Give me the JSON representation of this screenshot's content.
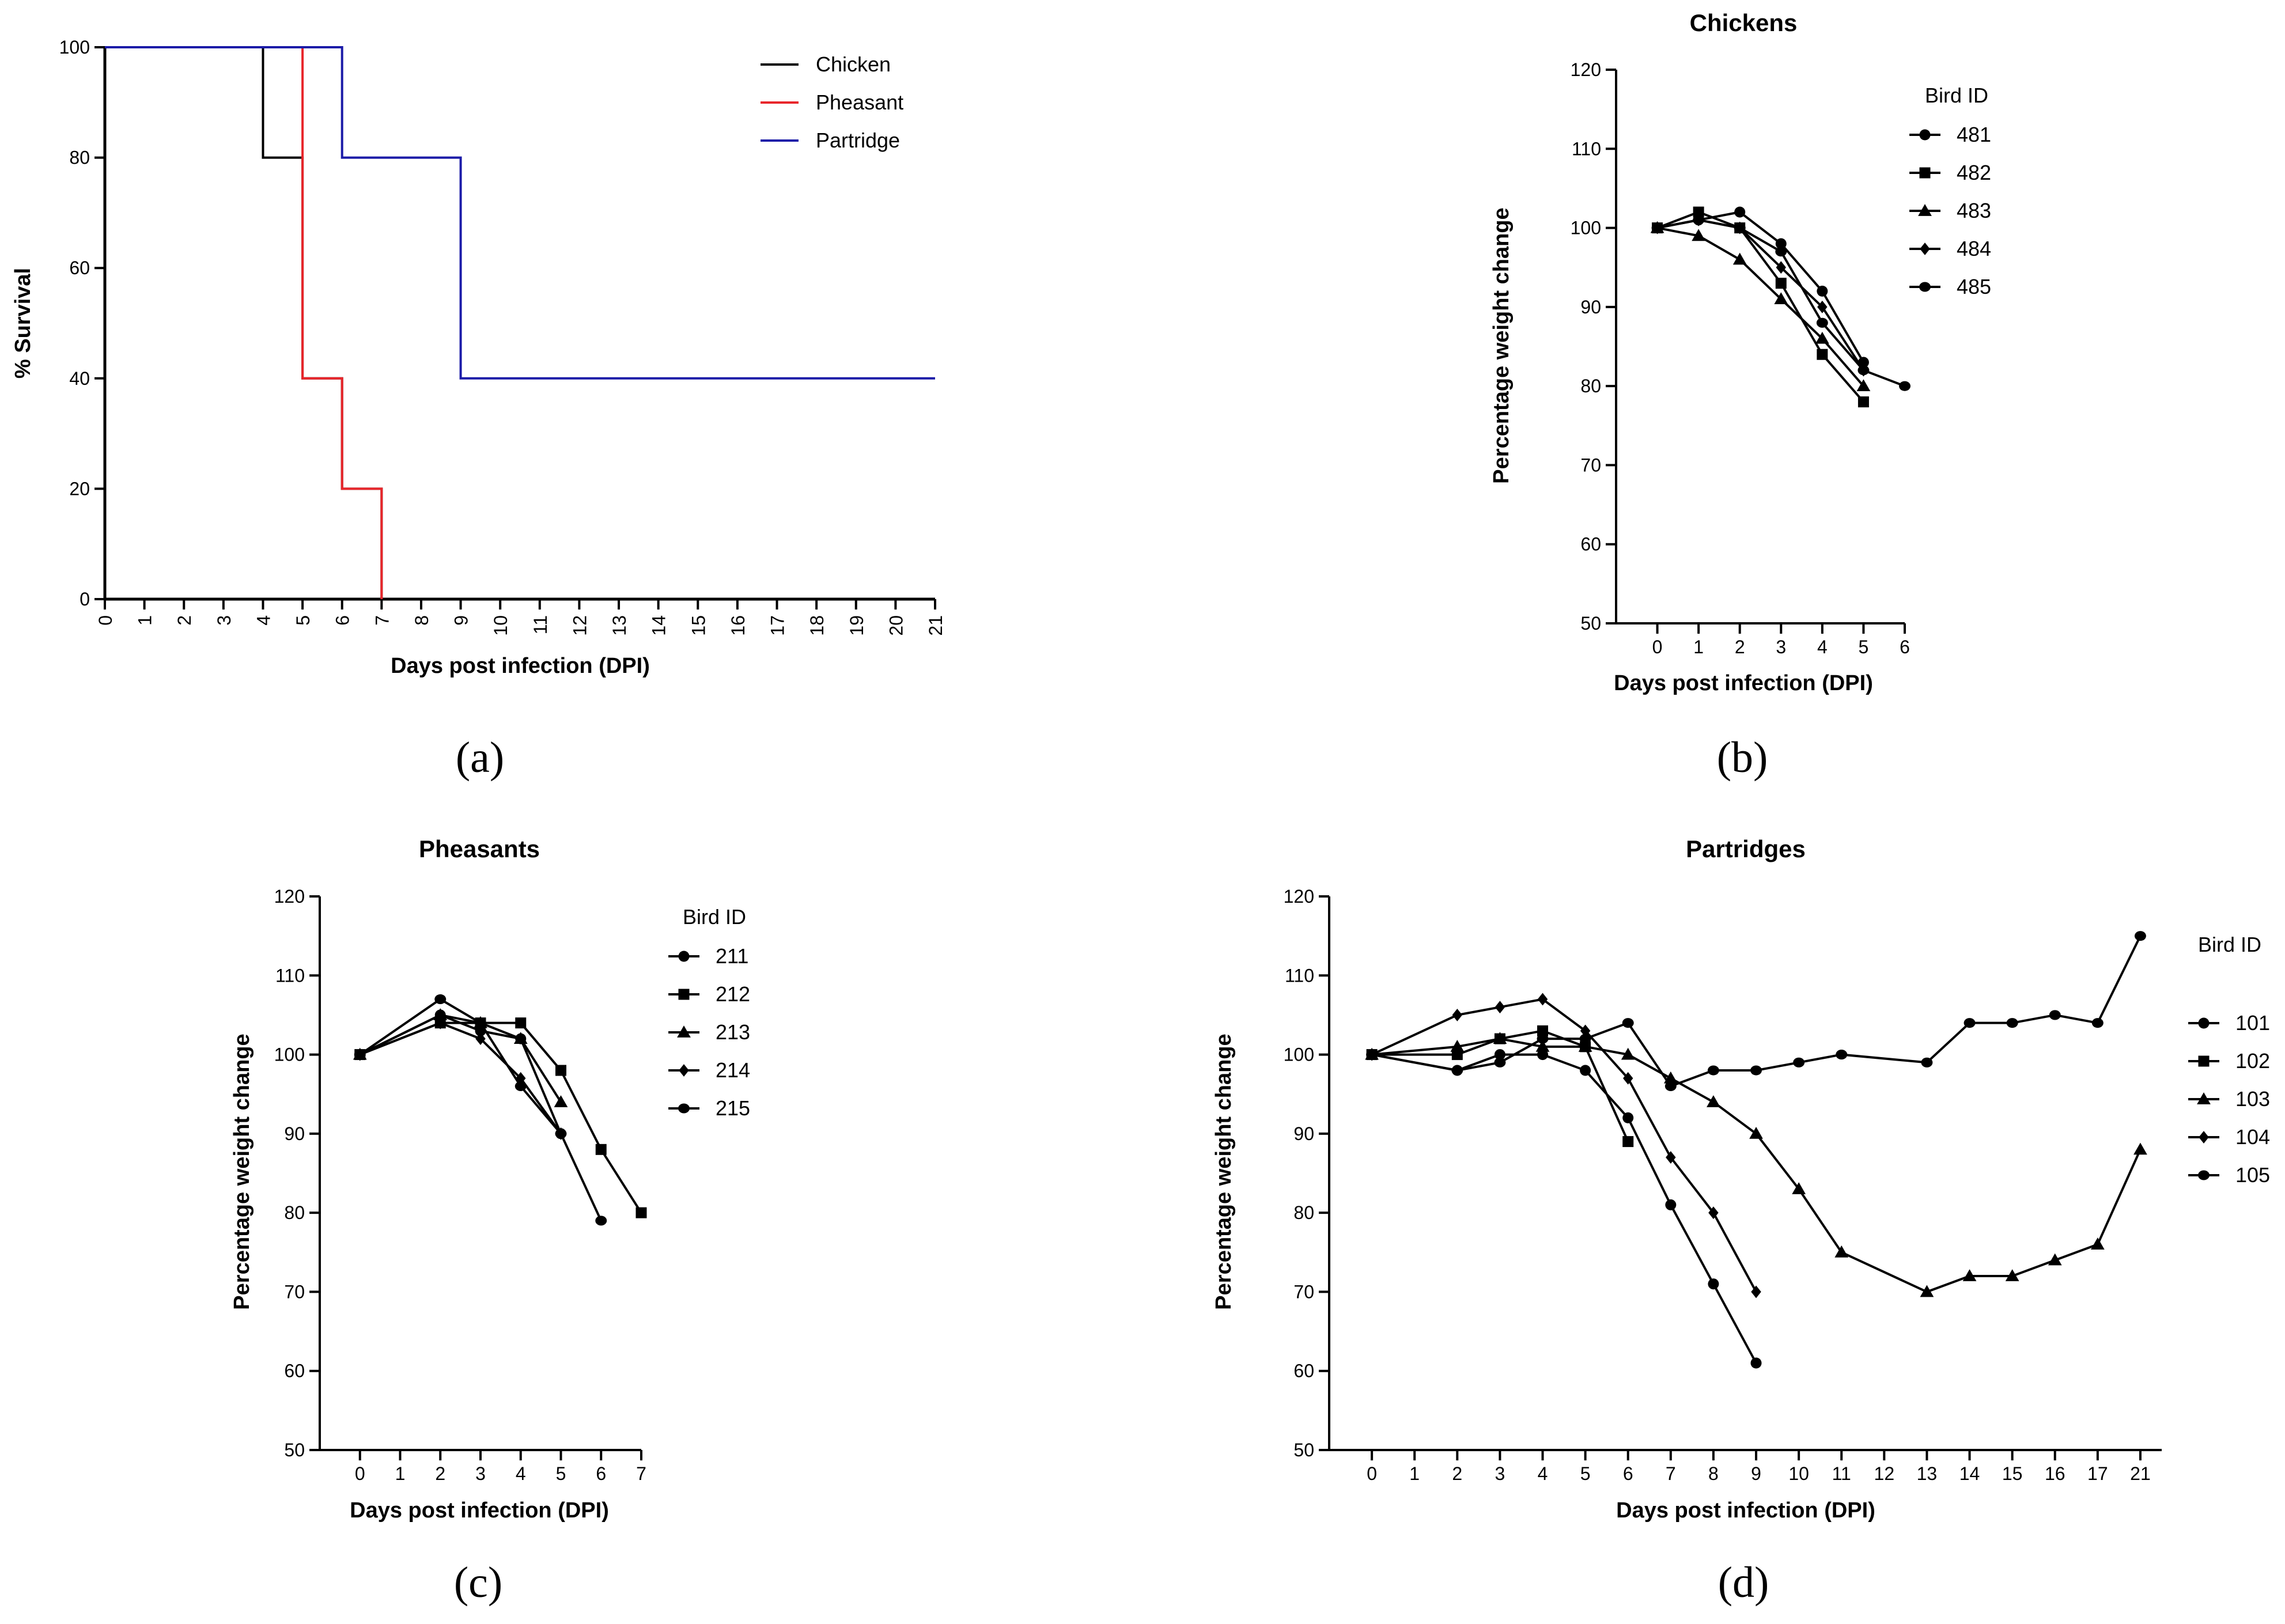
{
  "chart_data": [
    {
      "id": "a",
      "type": "line",
      "subtype": "step",
      "panel_label": "(a)",
      "title": "",
      "xlabel": "Days post infection (DPI)",
      "ylabel": "% Survival",
      "xlim": [
        0,
        21
      ],
      "ylim": [
        0,
        100
      ],
      "xticks": [
        0,
        1,
        2,
        3,
        4,
        5,
        6,
        7,
        8,
        9,
        10,
        11,
        12,
        13,
        14,
        15,
        16,
        17,
        18,
        19,
        20,
        21
      ],
      "yticks": [
        0,
        20,
        40,
        60,
        80,
        100
      ],
      "legend_title": "",
      "legend_position": "top-right",
      "series": [
        {
          "name": "Chicken",
          "color": "#000000",
          "x": [
            0,
            4,
            5,
            6,
            7
          ],
          "y": [
            100,
            80,
            40,
            20,
            0
          ]
        },
        {
          "name": "Pheasant",
          "color": "#e8262b",
          "x": [
            0,
            5,
            6,
            7
          ],
          "y": [
            100,
            40,
            20,
            0
          ]
        },
        {
          "name": "Partridge",
          "color": "#1c1ca8",
          "x": [
            0,
            6,
            9,
            21
          ],
          "y": [
            100,
            80,
            40,
            40
          ]
        }
      ]
    },
    {
      "id": "b",
      "type": "line",
      "panel_label": "(b)",
      "title": "Chickens",
      "xlabel": "Days post infection (DPI)",
      "ylabel": "Percentage weight change",
      "xlim": [
        -1,
        6
      ],
      "ylim": [
        50,
        120
      ],
      "xticks": [
        0,
        1,
        2,
        3,
        4,
        5,
        6
      ],
      "yticks": [
        50,
        60,
        70,
        80,
        90,
        100,
        110,
        120
      ],
      "legend_title": "Bird ID",
      "legend_position": "top-right",
      "series": [
        {
          "name": "481",
          "marker": "circle",
          "x": [
            0,
            1,
            2,
            3,
            4,
            5
          ],
          "y": [
            100,
            101,
            102,
            98,
            92,
            83
          ]
        },
        {
          "name": "482",
          "marker": "square",
          "x": [
            0,
            1,
            2,
            3,
            4,
            5
          ],
          "y": [
            100,
            102,
            100,
            93,
            84,
            78
          ]
        },
        {
          "name": "483",
          "marker": "triangle",
          "x": [
            0,
            1,
            2,
            3,
            4,
            5
          ],
          "y": [
            100,
            99,
            96,
            91,
            86,
            80
          ]
        },
        {
          "name": "484",
          "marker": "diamond",
          "x": [
            0,
            1,
            2,
            3,
            4,
            5
          ],
          "y": [
            100,
            101,
            100,
            95,
            90,
            82
          ]
        },
        {
          "name": "485",
          "marker": "hexagon",
          "x": [
            0,
            1,
            2,
            3,
            4,
            5,
            6
          ],
          "y": [
            100,
            101,
            100,
            97,
            88,
            82,
            80
          ]
        }
      ]
    },
    {
      "id": "c",
      "type": "line",
      "panel_label": "(c)",
      "title": "Pheasants",
      "xlabel": "Days post infection (DPI)",
      "ylabel": "Percentage weight change",
      "xlim": [
        -1,
        7
      ],
      "ylim": [
        50,
        120
      ],
      "xticks": [
        0,
        1,
        2,
        3,
        4,
        5,
        6,
        7
      ],
      "yticks": [
        50,
        60,
        70,
        80,
        90,
        100,
        110,
        120
      ],
      "legend_title": "Bird ID",
      "legend_position": "top-right",
      "series": [
        {
          "name": "211",
          "marker": "circle",
          "x": [
            0,
            2,
            3,
            4,
            5
          ],
          "y": [
            100,
            105,
            103,
            102,
            90
          ]
        },
        {
          "name": "212",
          "marker": "square",
          "x": [
            0,
            2,
            3,
            4,
            5,
            6,
            7
          ],
          "y": [
            100,
            104,
            104,
            104,
            98,
            88,
            80
          ]
        },
        {
          "name": "213",
          "marker": "triangle",
          "x": [
            0,
            2,
            3,
            4,
            5
          ],
          "y": [
            100,
            105,
            104,
            102,
            94
          ]
        },
        {
          "name": "214",
          "marker": "diamond",
          "x": [
            0,
            2,
            3,
            4,
            5
          ],
          "y": [
            100,
            104,
            102,
            97,
            90
          ]
        },
        {
          "name": "215",
          "marker": "hexagon",
          "x": [
            0,
            2,
            3,
            4,
            5,
            6
          ],
          "y": [
            100,
            107,
            104,
            96,
            90,
            79
          ]
        }
      ]
    },
    {
      "id": "d",
      "type": "line",
      "panel_label": "(d)",
      "title": "Partridges",
      "xlabel": "Days post infection (DPI)",
      "ylabel": "Percentage weight change",
      "xlim": [
        -1,
        18.5
      ],
      "ylim": [
        50,
        120
      ],
      "xticks": [
        "0",
        "1",
        "2",
        "3",
        "4",
        "5",
        "6",
        "7",
        "8",
        "9",
        "10",
        "11",
        "12",
        "13",
        "14",
        "15",
        "16",
        "17",
        "21"
      ],
      "yticks": [
        50,
        60,
        70,
        80,
        90,
        100,
        110,
        120
      ],
      "legend_title": "Bird ID",
      "legend_position": "right",
      "series": [
        {
          "name": "101",
          "marker": "circle",
          "x": [
            "0",
            "2",
            "3",
            "4",
            "5",
            "6",
            "7",
            "8",
            "9"
          ],
          "y": [
            100,
            98,
            100,
            100,
            98,
            92,
            81,
            71,
            61
          ]
        },
        {
          "name": "102",
          "marker": "square",
          "x": [
            "0",
            "2",
            "3",
            "4",
            "5",
            "6"
          ],
          "y": [
            100,
            100,
            102,
            103,
            101,
            89
          ]
        },
        {
          "name": "103",
          "marker": "triangle",
          "x": [
            "0",
            "2",
            "3",
            "4",
            "5",
            "6",
            "7",
            "8",
            "9",
            "10",
            "11",
            "13",
            "14",
            "15",
            "16",
            "17",
            "21"
          ],
          "y": [
            100,
            101,
            102,
            101,
            101,
            100,
            97,
            94,
            90,
            83,
            75,
            70,
            72,
            72,
            74,
            76,
            88
          ]
        },
        {
          "name": "104",
          "marker": "diamond",
          "x": [
            "0",
            "2",
            "3",
            "4",
            "5",
            "6",
            "7",
            "8",
            "9"
          ],
          "y": [
            100,
            105,
            106,
            107,
            103,
            97,
            87,
            80,
            70
          ]
        },
        {
          "name": "105",
          "marker": "hexagon",
          "x": [
            "0",
            "2",
            "3",
            "4",
            "5",
            "6",
            "7",
            "8",
            "9",
            "10",
            "11",
            "13",
            "14",
            "15",
            "16",
            "17",
            "21"
          ],
          "y": [
            100,
            98,
            99,
            102,
            102,
            104,
            96,
            98,
            98,
            99,
            100,
            99,
            104,
            104,
            105,
            104,
            115
          ]
        }
      ]
    }
  ]
}
